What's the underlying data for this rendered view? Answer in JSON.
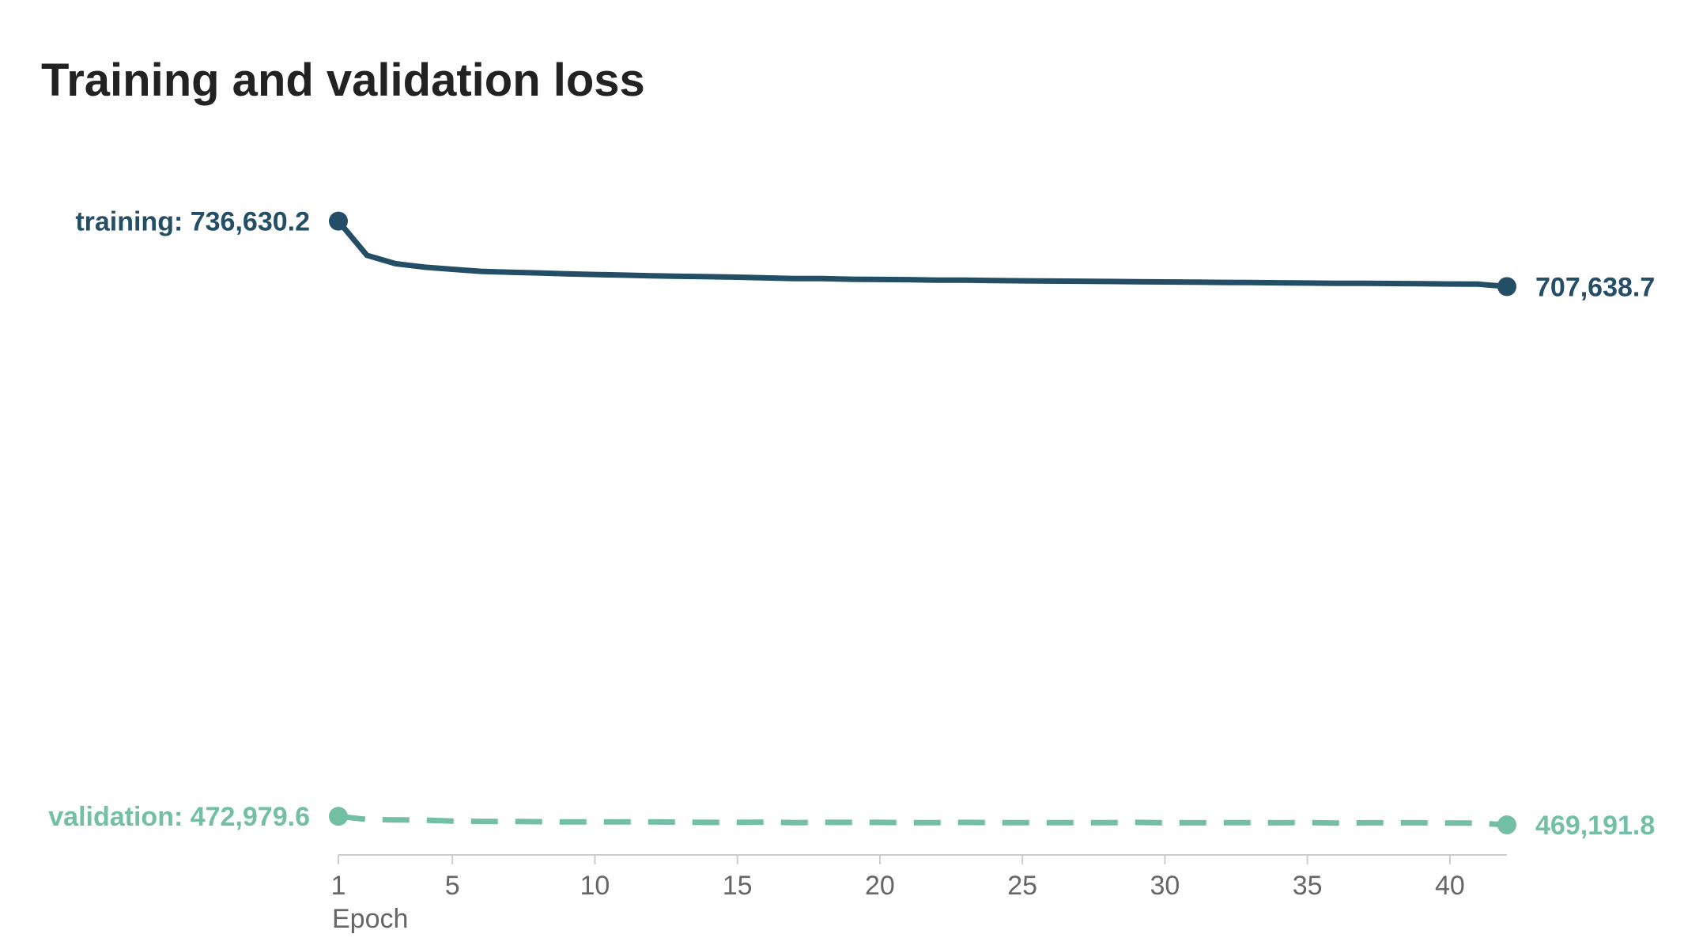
{
  "chart_data": {
    "type": "line",
    "title": "Training and validation loss",
    "xlabel": "Epoch",
    "ylabel": "",
    "x_ticks": [
      1,
      5,
      10,
      15,
      20,
      25,
      30,
      35,
      40
    ],
    "xlim": [
      1,
      42
    ],
    "ylim": [
      465000,
      740000
    ],
    "grid": false,
    "legend": "direct labels at line ends",
    "x": [
      1,
      2,
      3,
      4,
      5,
      6,
      7,
      8,
      9,
      10,
      11,
      12,
      13,
      14,
      15,
      16,
      17,
      18,
      19,
      20,
      21,
      22,
      23,
      24,
      25,
      26,
      27,
      28,
      29,
      30,
      31,
      32,
      33,
      34,
      35,
      36,
      37,
      38,
      39,
      40,
      41,
      42
    ],
    "series": [
      {
        "name": "training",
        "color": "#234e66",
        "dash": "solid",
        "start_label": "training: 736,630.2",
        "end_label": "707,638.7",
        "values": [
          736630.2,
          721500,
          717800,
          716300,
          715300,
          714400,
          714000,
          713700,
          713300,
          713000,
          712700,
          712400,
          712200,
          712000,
          711800,
          711500,
          711200,
          711200,
          710900,
          710800,
          710700,
          710500,
          710500,
          710300,
          710200,
          710100,
          710000,
          709900,
          709800,
          709700,
          709600,
          709500,
          709400,
          709300,
          709200,
          709100,
          709100,
          709000,
          708900,
          708800,
          708700,
          707638.7
        ]
      },
      {
        "name": "validation",
        "color": "#72bfa4",
        "dash": "dashed",
        "start_label": "validation: 472,979.6",
        "end_label": "469,191.8",
        "values": [
          472979.6,
          471600,
          471400,
          471300,
          470900,
          470700,
          470700,
          470600,
          470500,
          470500,
          470500,
          470500,
          470400,
          470300,
          470300,
          470400,
          470200,
          470300,
          470300,
          470300,
          470200,
          470200,
          470300,
          470200,
          470200,
          470200,
          470200,
          470200,
          470300,
          470100,
          470100,
          470200,
          470200,
          470100,
          470200,
          470000,
          470100,
          470100,
          470100,
          470000,
          470000,
          469191.8
        ]
      }
    ]
  }
}
